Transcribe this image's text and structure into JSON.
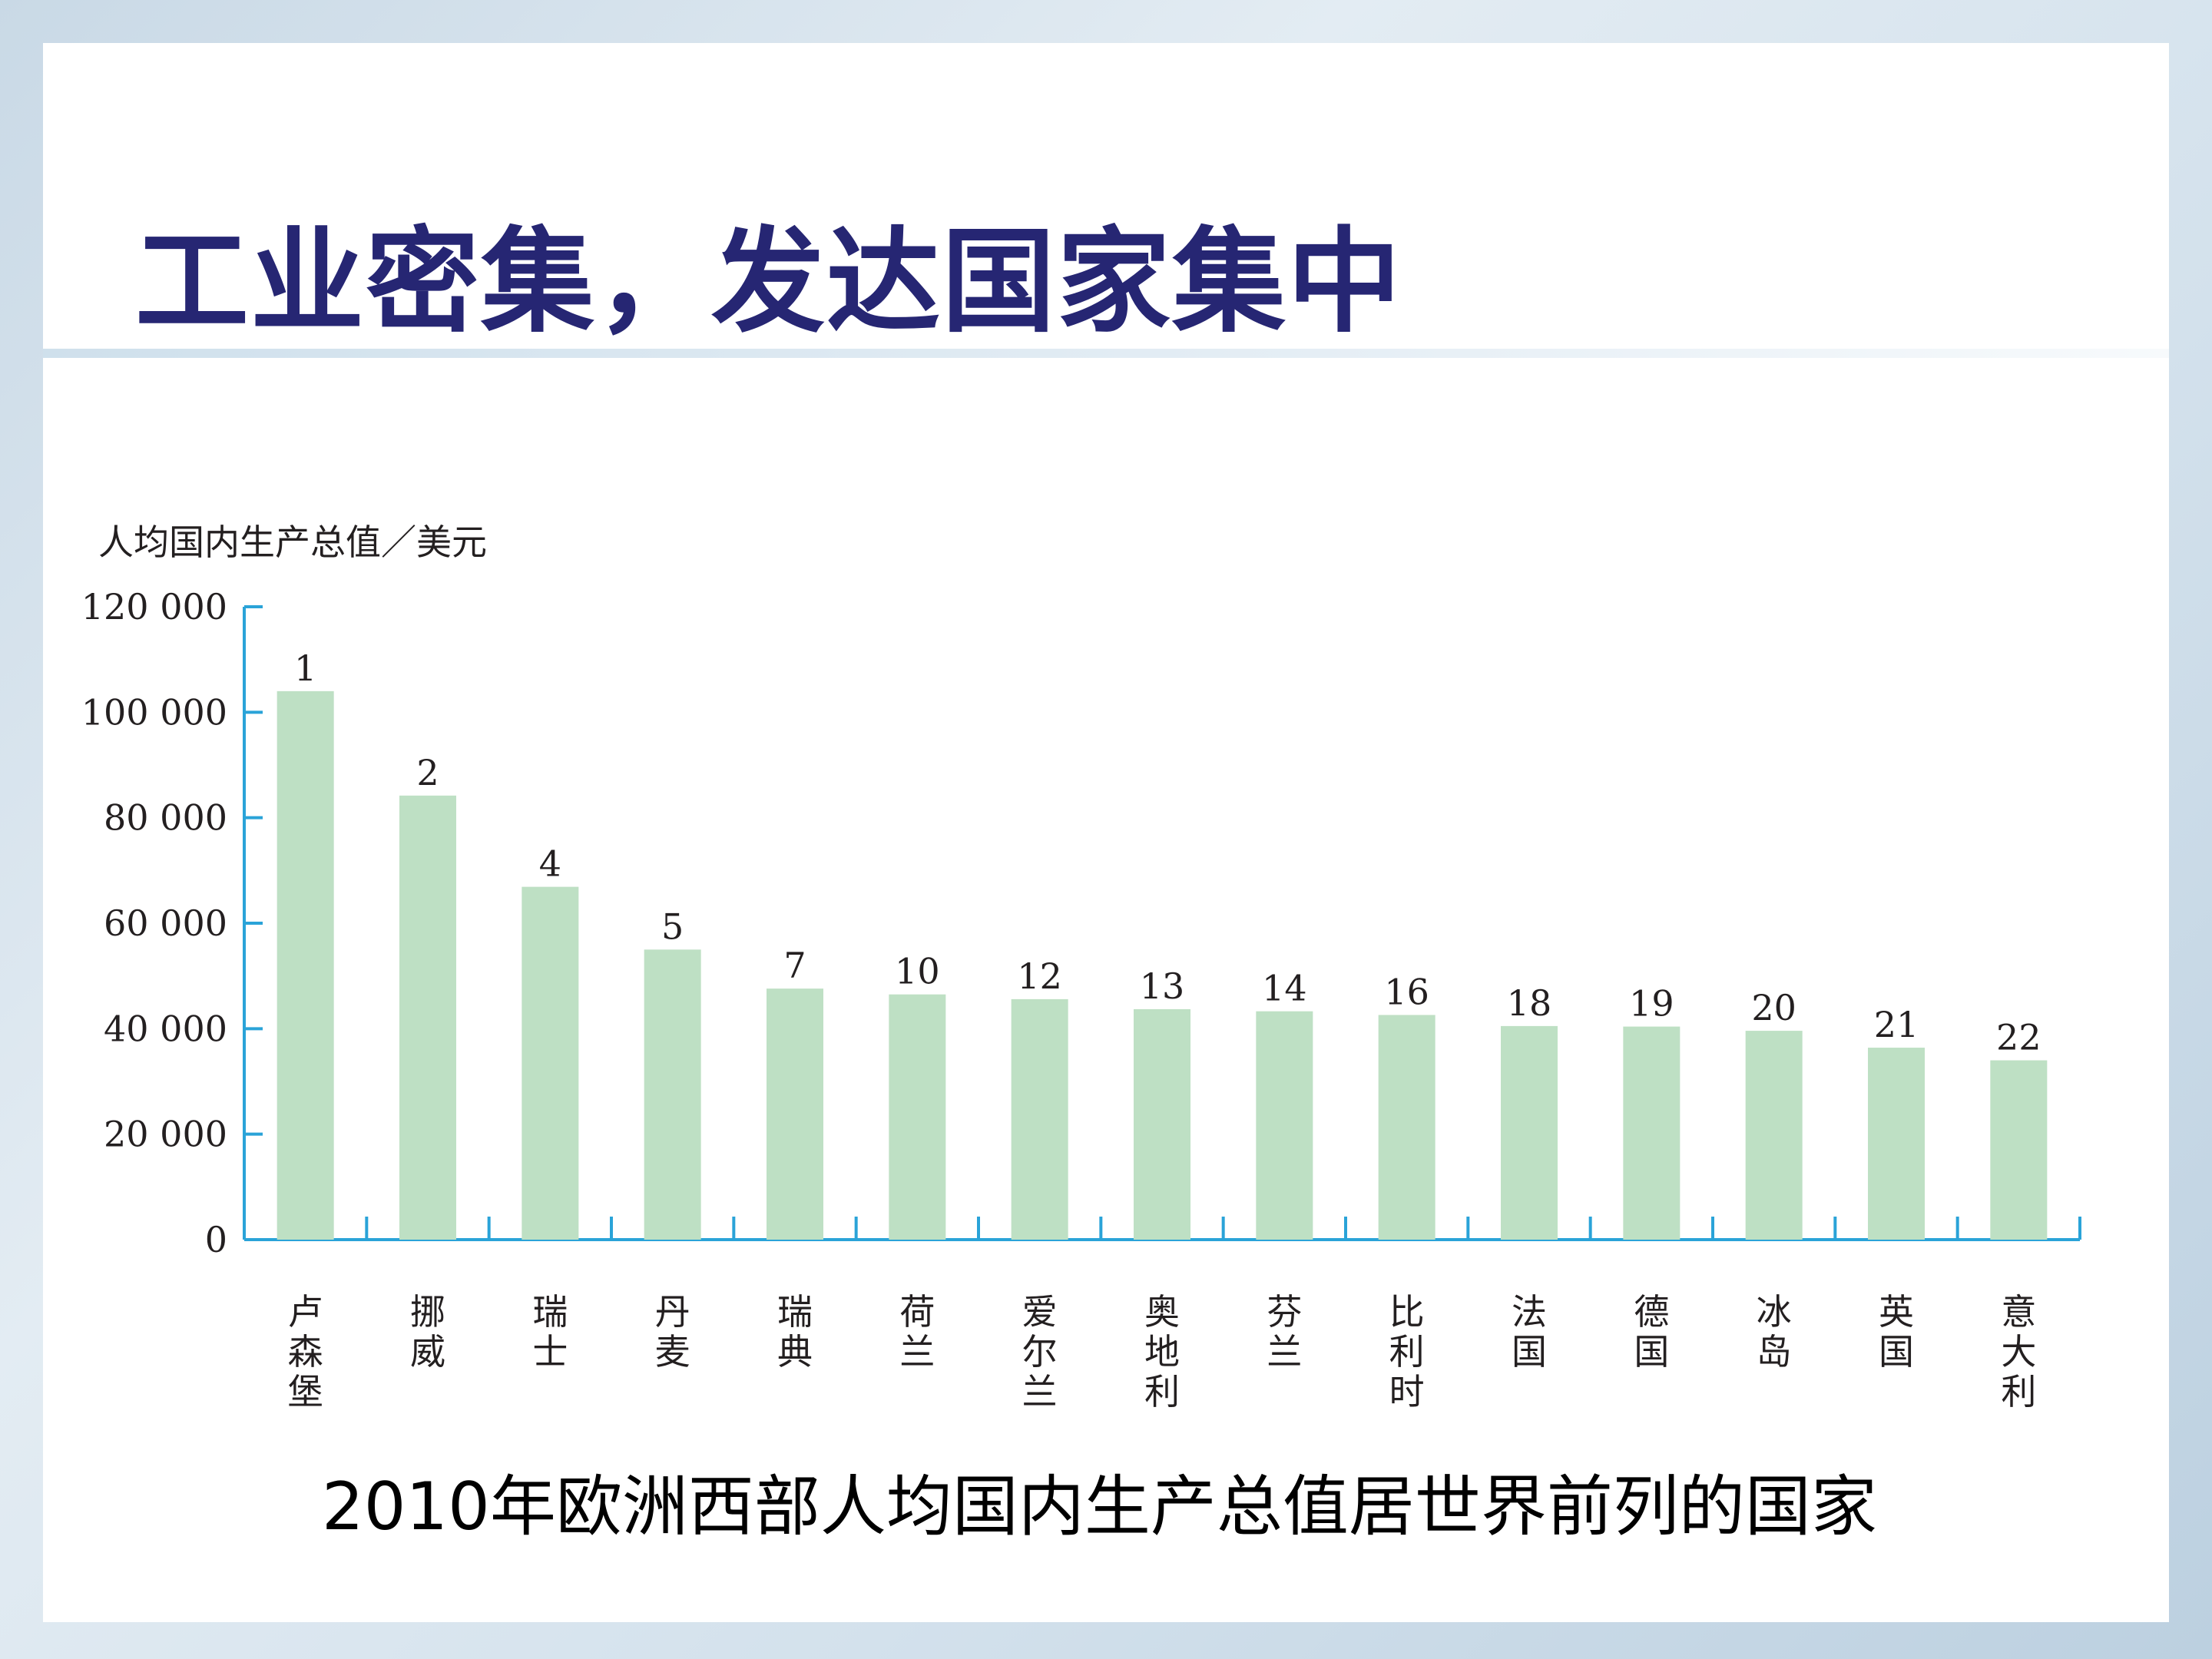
{
  "slide": {
    "title": "工业密集，发达国家集中",
    "caption": "2010年欧洲西部人均国内生产总值居世界前列的国家"
  },
  "colors": {
    "title": "#262673",
    "bar": "#bee0c4",
    "axis": "#2aa3d8"
  },
  "chart_data": {
    "type": "bar",
    "ylabel": "人均国内生产总值／美元",
    "ylim": [
      0,
      120000
    ],
    "yticks": [
      0,
      20000,
      40000,
      60000,
      80000,
      100000,
      120000
    ],
    "ytick_labels": [
      "0",
      "20 000",
      "40 000",
      "60 000",
      "80 000",
      "100 000",
      "120 000"
    ],
    "grid": false,
    "categories": [
      "卢森堡",
      "挪威",
      "瑞士",
      "丹麦",
      "瑞典",
      "荷兰",
      "爱尔兰",
      "奥地利",
      "芬兰",
      "比利时",
      "法国",
      "德国",
      "冰岛",
      "英国",
      "意大利"
    ],
    "values": [
      104000,
      84200,
      66900,
      55000,
      47600,
      46500,
      45600,
      43700,
      43300,
      42600,
      40500,
      40400,
      39600,
      36400,
      34000
    ],
    "data_labels": [
      "1",
      "2",
      "4",
      "5",
      "7",
      "10",
      "12",
      "13",
      "14",
      "16",
      "18",
      "19",
      "20",
      "21",
      "22"
    ]
  }
}
